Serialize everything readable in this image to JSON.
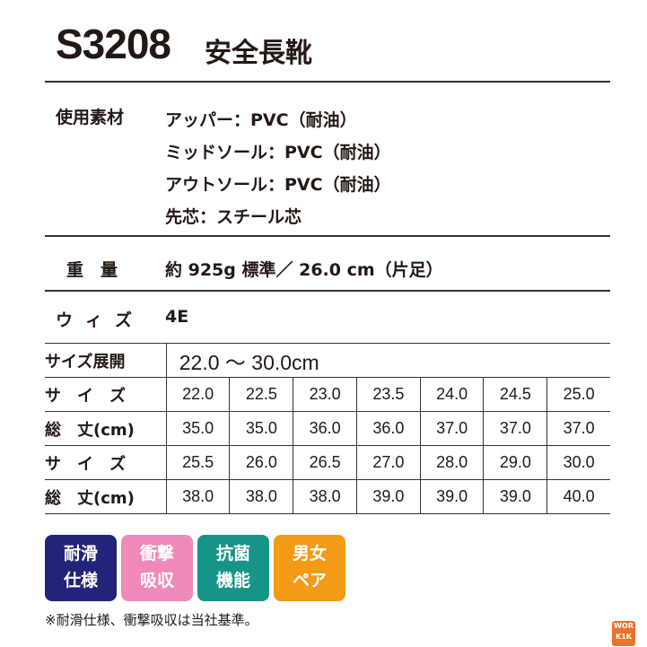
{
  "header": {
    "code": "S3208",
    "name": "安全長靴"
  },
  "materials": {
    "label": "使用素材",
    "lines": [
      "アッパー：PVC（耐油）",
      "ミッドソール：PVC（耐油）",
      "アウトソール：PVC（耐油）",
      "先芯：スチール芯"
    ]
  },
  "weight": {
    "label": "重　量",
    "value": "約 925g 標準／ 26.0 cm（片足）"
  },
  "width": {
    "label": "ウィズ",
    "value": "4E"
  },
  "size_table": {
    "range_label": "サイズ展開",
    "range_value": "22.0 ～ 30.0cm",
    "rows": [
      {
        "label": "サ　イ　ズ",
        "values": [
          "22.0",
          "22.5",
          "23.0",
          "23.5",
          "24.0",
          "24.5",
          "25.0"
        ]
      },
      {
        "label": "総　丈(cm)",
        "values": [
          "35.0",
          "35.0",
          "36.0",
          "36.0",
          "37.0",
          "37.0",
          "37.0"
        ]
      },
      {
        "label": "サ　イ　ズ",
        "values": [
          "25.5",
          "26.0",
          "26.5",
          "27.0",
          "28.0",
          "29.0",
          "30.0"
        ]
      },
      {
        "label": "総　丈(cm)",
        "values": [
          "38.0",
          "38.0",
          "38.0",
          "39.0",
          "39.0",
          "39.0",
          "40.0"
        ]
      }
    ]
  },
  "badges": [
    {
      "line1": "耐滑",
      "line2": "仕様",
      "color": "#23237a"
    },
    {
      "line1": "衝撃",
      "line2": "吸収",
      "color": "#ef8ab8"
    },
    {
      "line1": "抗菌",
      "line2": "機能",
      "color": "#169487"
    },
    {
      "line1": "男女",
      "line2": "ペア",
      "color": "#f39a17"
    }
  ],
  "note": "※耐滑仕様、衝撃吸収は当社基準。",
  "logo": {
    "text": "WORK 1K",
    "color": "#e8742a"
  }
}
